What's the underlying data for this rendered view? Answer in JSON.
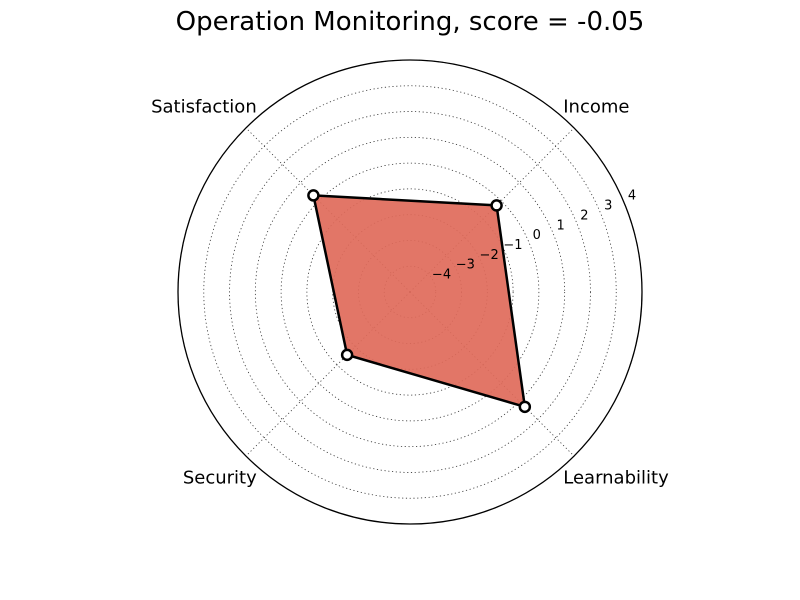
{
  "chart_data": {
    "type": "radar",
    "title": "Operation Monitoring, score = -0.05",
    "axes": [
      "Income",
      "Learnability",
      "Security",
      "Satisfaction"
    ],
    "values": [
      -0.25,
      1.3,
      -1.55,
      0.3
    ],
    "rlim": [
      -5,
      4
    ],
    "r_ticks": [
      -4,
      -3,
      -2,
      -1,
      0,
      1,
      2,
      3,
      4
    ],
    "r_tick_labels": [
      "−4",
      "−3",
      "−2",
      "−1",
      "0",
      "1",
      "2",
      "3",
      "4"
    ],
    "grid": true,
    "fill_color": "#e06a5a",
    "line_color": "#000000",
    "marker_face_color": "#ffffff"
  }
}
